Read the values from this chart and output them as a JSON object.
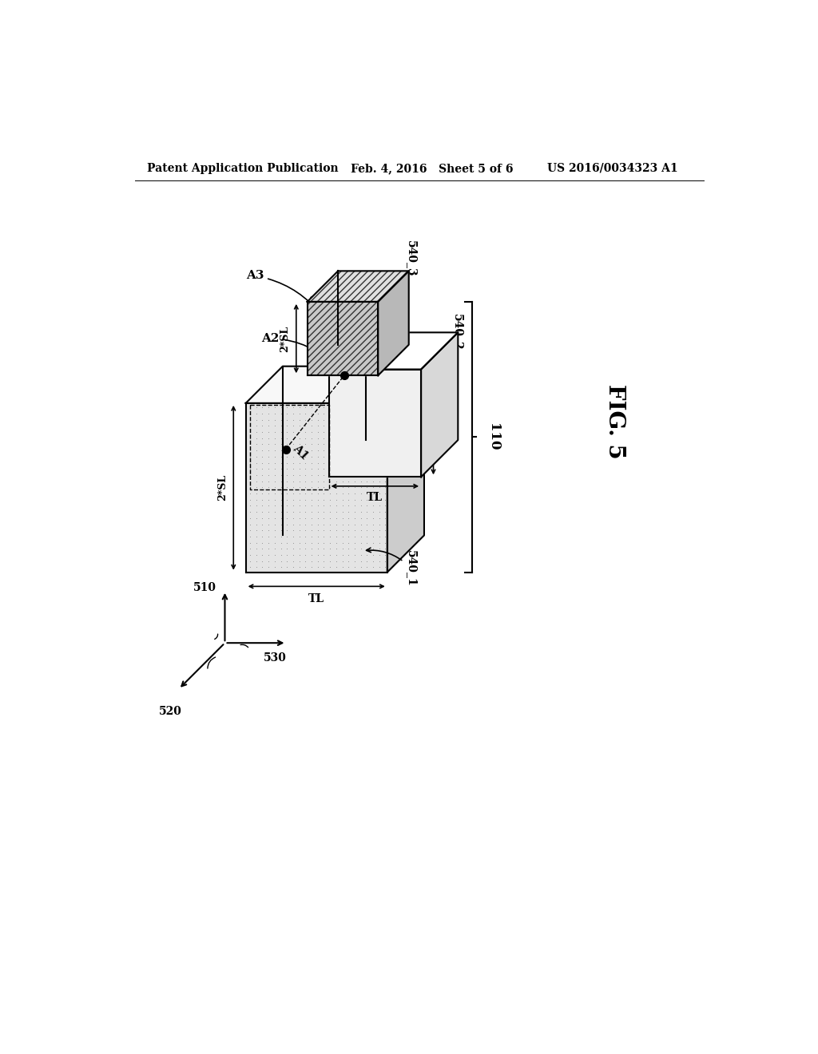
{
  "header_left": "Patent Application Publication",
  "header_mid": "Feb. 4, 2016   Sheet 5 of 6",
  "header_right": "US 2016/0034323 A1",
  "fig_label": "FIG. 5",
  "bg_color": "#ffffff",
  "line_color": "#000000",
  "box1_face": "#e4e4e4",
  "box1_top": "#f8f8f8",
  "box1_right": "#cccccc",
  "box2_face": "#f0f0f0",
  "box2_top": "#ffffff",
  "box2_right": "#d8d8d8",
  "box3_face": "#c8c8c8",
  "box3_top": "#e0e0e0",
  "box3_right": "#b8b8b8",
  "dot_color": "#888888"
}
